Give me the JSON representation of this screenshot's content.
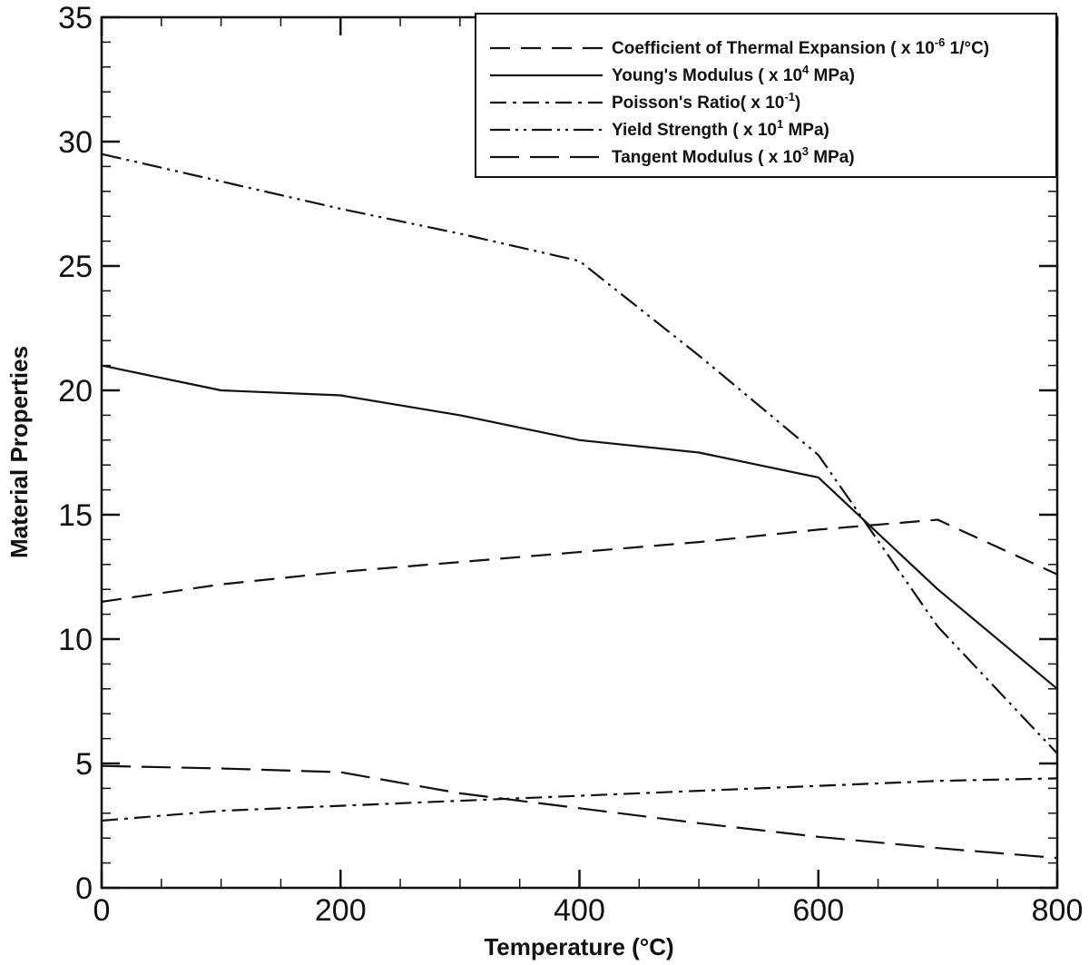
{
  "chart_data": {
    "type": "line",
    "title": "",
    "xlabel": "Temperature (°C)",
    "ylabel": "Material Properties",
    "xlim": [
      0,
      800
    ],
    "ylim": [
      0,
      35
    ],
    "x_major_ticks": [
      0,
      200,
      400,
      600,
      800
    ],
    "x_minor_ticks": [
      50,
      100,
      150,
      250,
      300,
      350,
      450,
      500,
      550,
      650,
      700,
      750
    ],
    "y_major_ticks": [
      0,
      5,
      10,
      15,
      20,
      25,
      30,
      35
    ],
    "y_minor_ticks": [
      1,
      2,
      3,
      4,
      6,
      7,
      8,
      9,
      11,
      12,
      13,
      14,
      16,
      17,
      18,
      19,
      21,
      22,
      23,
      24,
      26,
      27,
      28,
      29,
      31,
      32,
      33,
      34
    ],
    "grid": false,
    "legend_position": "top-right",
    "series": [
      {
        "name": "Coefficient of Thermal Expansion ( x 10-6 1/°C)",
        "legend": {
          "pre": "Coefficient of Thermal Expansion ( x 10",
          "sup": "-6",
          "post": " 1/°C)"
        },
        "line_style": "dashed",
        "x": [
          0,
          100,
          200,
          300,
          400,
          500,
          600,
          700,
          800
        ],
        "values": [
          11.5,
          12.2,
          12.7,
          13.1,
          13.5,
          13.9,
          14.4,
          14.8,
          12.6
        ]
      },
      {
        "name": "Young's Modulus ( x 104 MPa)",
        "legend": {
          "pre": "Young's Modulus ( x 10",
          "sup": "4",
          "post": " MPa)"
        },
        "line_style": "solid",
        "x": [
          0,
          100,
          200,
          300,
          400,
          500,
          600,
          700,
          800
        ],
        "values": [
          21.0,
          20.0,
          19.8,
          19.0,
          18.0,
          17.5,
          16.5,
          12.0,
          8.0
        ]
      },
      {
        "name": "Poisson's Ratio( x 10-1)",
        "legend": {
          "pre": "Poisson's Ratio( x 10",
          "sup": "-1",
          "post": ")"
        },
        "line_style": "dash-dot",
        "x": [
          0,
          100,
          200,
          300,
          400,
          500,
          600,
          700,
          800
        ],
        "values": [
          2.7,
          3.1,
          3.3,
          3.5,
          3.7,
          3.9,
          4.1,
          4.3,
          4.4
        ]
      },
      {
        "name": "Yield Strength ( x 101 MPa)",
        "legend": {
          "pre": "Yield Strength ( x 10",
          "sup": "1",
          "post": " MPa)"
        },
        "line_style": "dash-dot-dot",
        "x": [
          0,
          100,
          200,
          300,
          400,
          500,
          600,
          700,
          800
        ],
        "values": [
          29.5,
          28.4,
          27.3,
          26.3,
          25.2,
          21.4,
          17.4,
          10.5,
          5.4
        ]
      },
      {
        "name": "Tangent Modulus ( x 103 MPa)",
        "legend": {
          "pre": "Tangent Modulus ( x 10",
          "sup": "3",
          "post": " MPa)"
        },
        "line_style": "long-dash",
        "x": [
          0,
          100,
          200,
          300,
          400,
          500,
          600,
          700,
          800
        ],
        "values": [
          4.9,
          4.8,
          4.65,
          3.8,
          3.2,
          2.6,
          2.05,
          1.6,
          1.2
        ]
      }
    ]
  }
}
